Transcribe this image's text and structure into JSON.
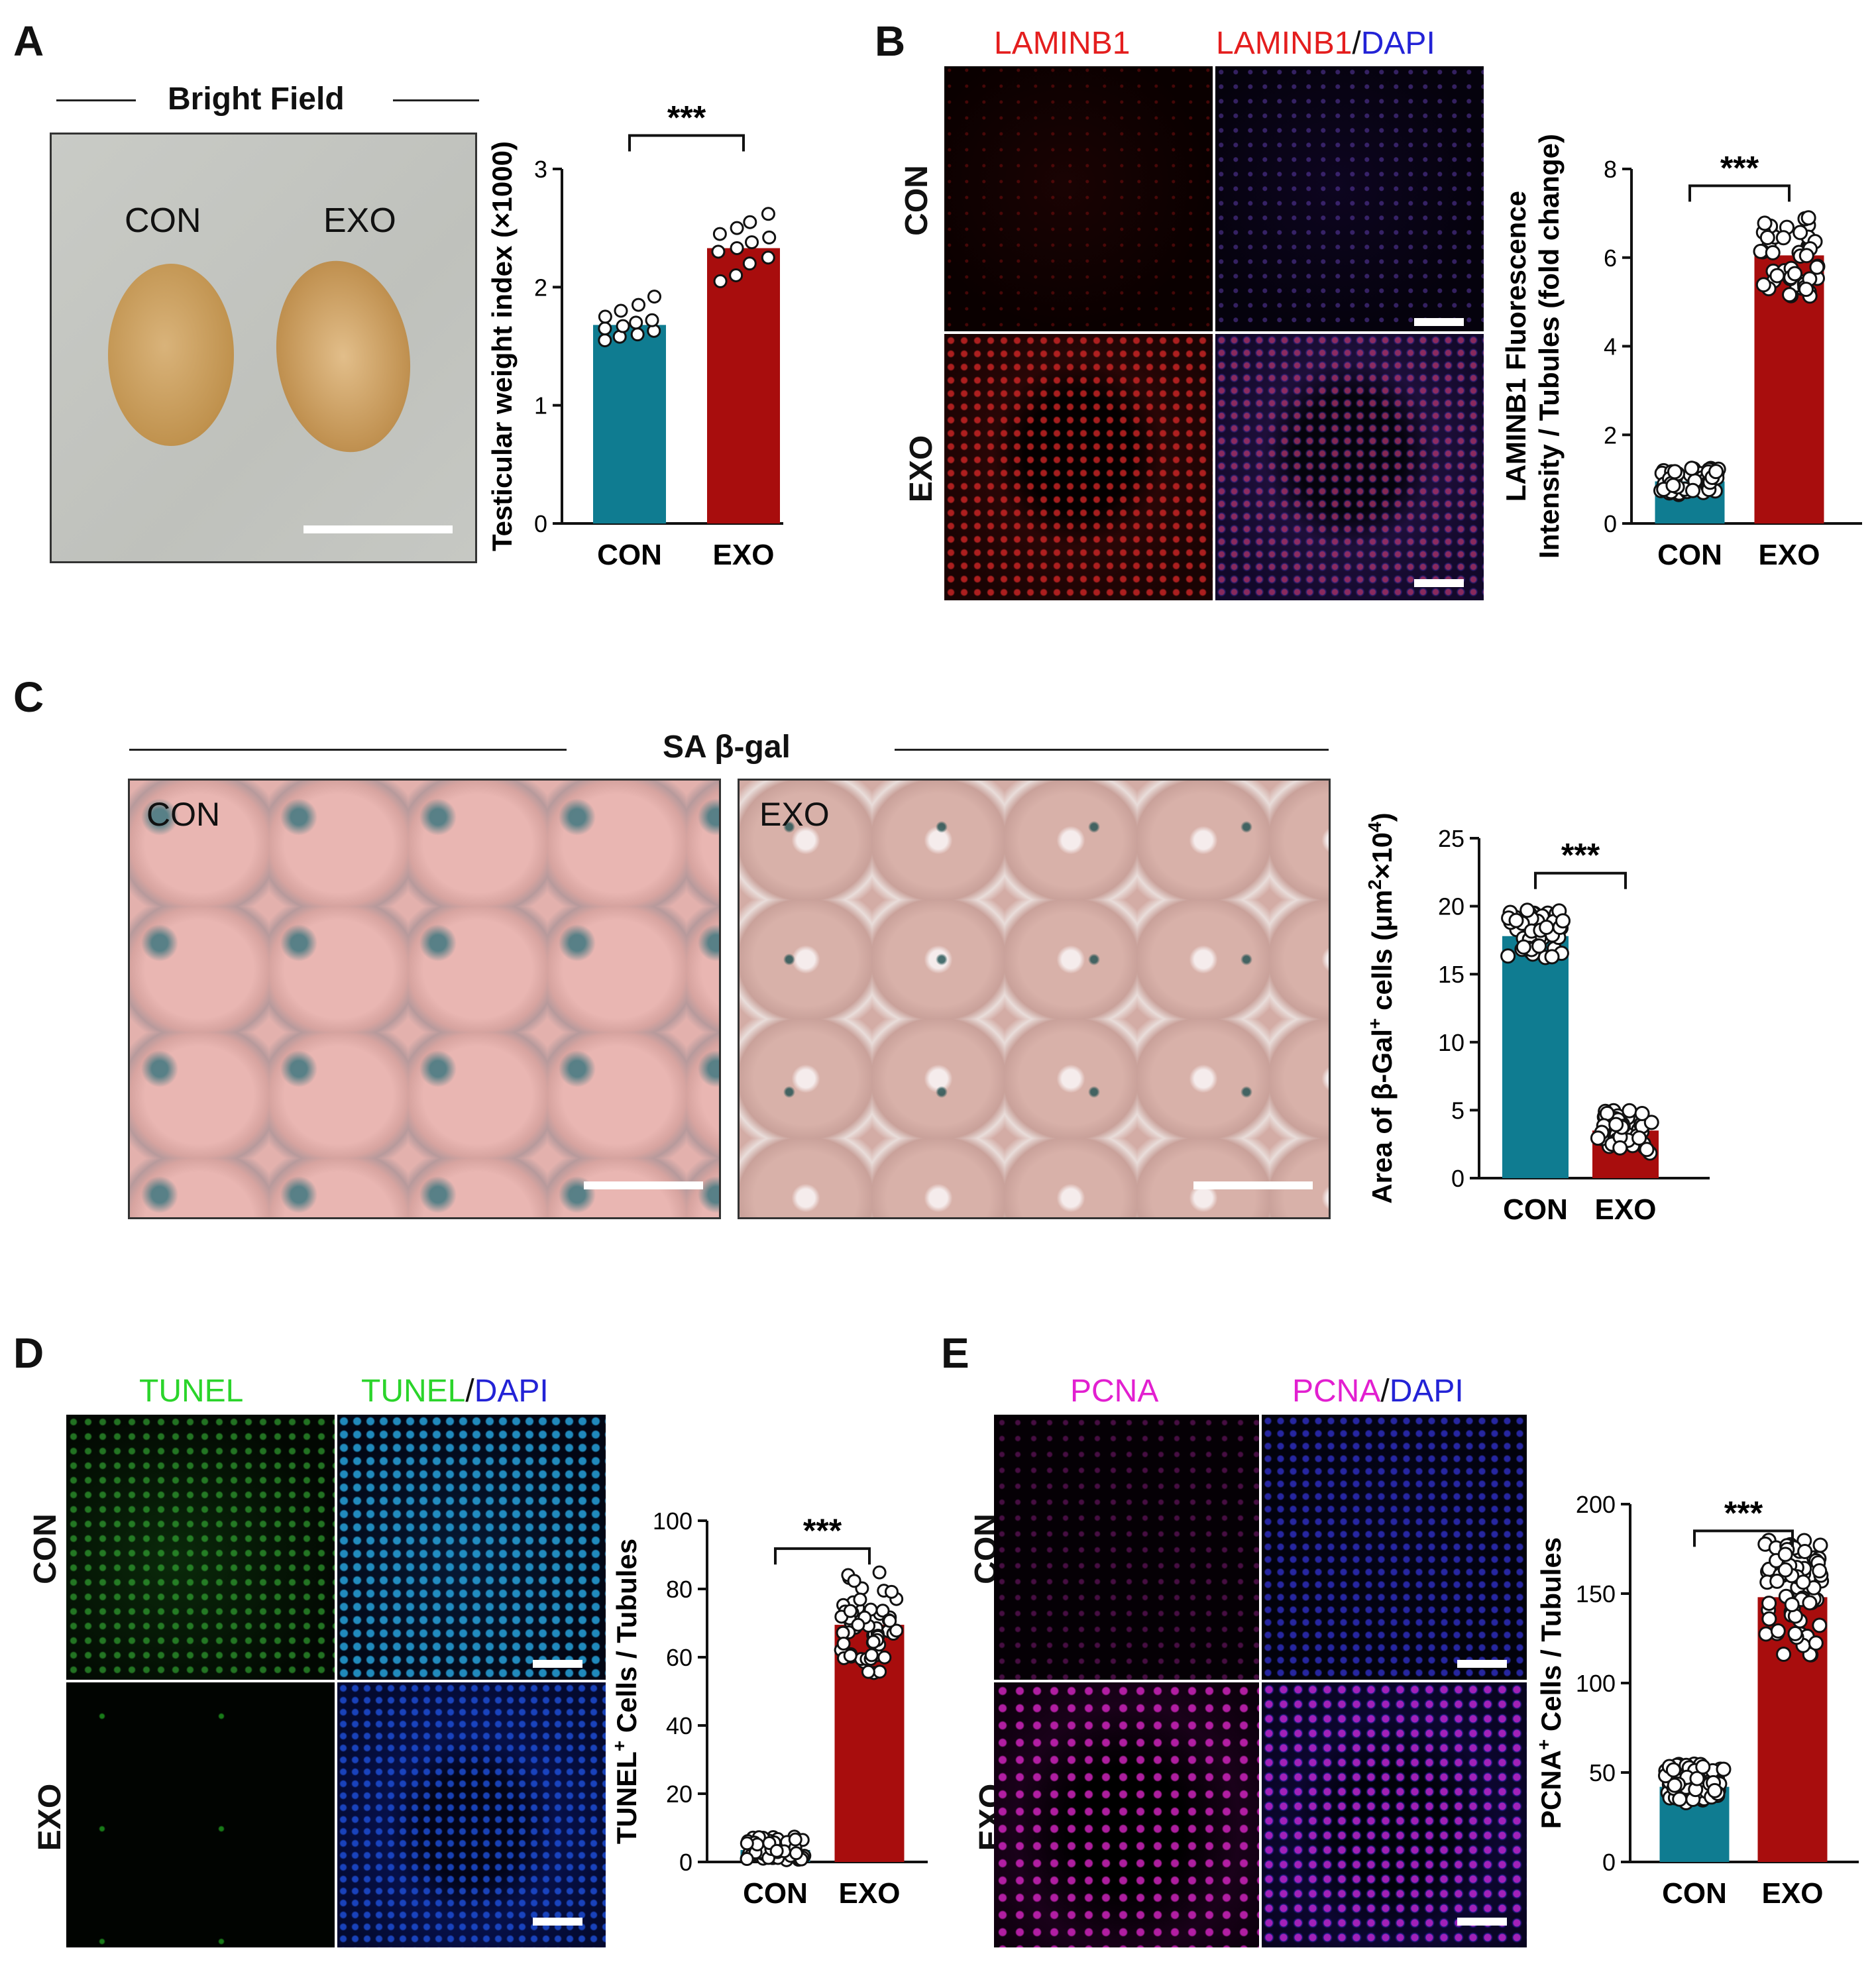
{
  "panels": {
    "a": {
      "letter": "A",
      "title": "Bright Field",
      "photo_labels": [
        "CON",
        "EXO"
      ]
    },
    "b": {
      "letter": "B",
      "ch1": "LAMINB1",
      "ch2_a": "LAMINB1",
      "slash": "/",
      "ch2_b": "DAPI",
      "rows": [
        "CON",
        "EXO"
      ]
    },
    "c": {
      "letter": "C",
      "title": "SA β-gal",
      "photo_labels": [
        "CON",
        "EXO"
      ]
    },
    "d": {
      "letter": "D",
      "ch1": "TUNEL",
      "ch2_a": "TUNEL",
      "slash": "/",
      "ch2_b": "DAPI",
      "rows": [
        "CON",
        "EXO"
      ]
    },
    "e": {
      "letter": "E",
      "ch1": "PCNA",
      "ch2_a": "PCNA",
      "slash": "/",
      "ch2_b": "DAPI",
      "rows": [
        "CON",
        "EXO"
      ]
    }
  },
  "colors": {
    "con": "#0f7c91",
    "exo": "#a80d0d",
    "laminb1": "#e41e1e",
    "dapi": "#2323d6",
    "tunel": "#2bd42b",
    "pcna": "#e21fd0"
  },
  "chart_data": [
    {
      "id": "A",
      "type": "bar",
      "categories": [
        "CON",
        "EXO"
      ],
      "values": [
        1.68,
        2.33
      ],
      "ylim": [
        0,
        3
      ],
      "yticks": [
        0,
        1,
        2,
        3
      ],
      "ylabel": "Testicular weight index (×1000)",
      "significance": "***",
      "points": [
        [
          1.55,
          1.58,
          1.6,
          1.63,
          1.65,
          1.67,
          1.7,
          1.72,
          1.75,
          1.8,
          1.85,
          1.92
        ],
        [
          2.05,
          2.1,
          2.2,
          2.25,
          2.3,
          2.33,
          2.38,
          2.42,
          2.45,
          2.5,
          2.55,
          2.62
        ]
      ]
    },
    {
      "id": "B",
      "type": "bar",
      "categories": [
        "CON",
        "EXO"
      ],
      "values": [
        0.95,
        6.05
      ],
      "ylim": [
        0,
        8
      ],
      "yticks": [
        0,
        2,
        4,
        6,
        8
      ],
      "ylabel_lines": [
        "LAMINB1 Fluorescence",
        "Intensity / Tubules (fold change)"
      ],
      "significance": "***",
      "point_range": [
        [
          0.65,
          1.25
        ],
        [
          5.1,
          6.9
        ]
      ],
      "point_count": 50
    },
    {
      "id": "C",
      "type": "bar",
      "categories": [
        "CON",
        "EXO"
      ],
      "values": [
        17.8,
        3.5
      ],
      "ylim": [
        0,
        25
      ],
      "yticks": [
        0,
        5,
        10,
        15,
        20,
        25
      ],
      "ylabel": "Area of β-Gal",
      "ylabel_sup1": "+",
      "ylabel_mid": " cells (μm",
      "ylabel_sup2": "2",
      "ylabel_mid2": "×10",
      "ylabel_sup3": "4",
      "ylabel_end": ")",
      "significance": "***",
      "point_range": [
        [
          16.2,
          19.8
        ],
        [
          1.8,
          5.0
        ]
      ],
      "point_count": 50
    },
    {
      "id": "D",
      "type": "bar",
      "categories": [
        "CON",
        "EXO"
      ],
      "values": [
        3.5,
        69.5
      ],
      "ylim": [
        0,
        100
      ],
      "yticks": [
        0,
        20,
        40,
        60,
        80,
        100
      ],
      "ylabel": "TUNEL",
      "ylabel_sup": "+",
      "ylabel_end": " Cells / Tubules",
      "significance": "***",
      "point_range": [
        [
          0.5,
          7.5
        ],
        [
          55,
          85
        ]
      ],
      "point_count": 60
    },
    {
      "id": "E",
      "type": "bar",
      "categories": [
        "CON",
        "EXO"
      ],
      "values": [
        42,
        148
      ],
      "ylim": [
        0,
        200
      ],
      "yticks": [
        0,
        50,
        100,
        150,
        200
      ],
      "ylabel": "PCNA",
      "ylabel_sup": "+",
      "ylabel_end": " Cells / Tubules",
      "significance": "***",
      "point_range": [
        [
          33,
          55
        ],
        [
          115,
          180
        ]
      ],
      "point_count": 70
    }
  ]
}
